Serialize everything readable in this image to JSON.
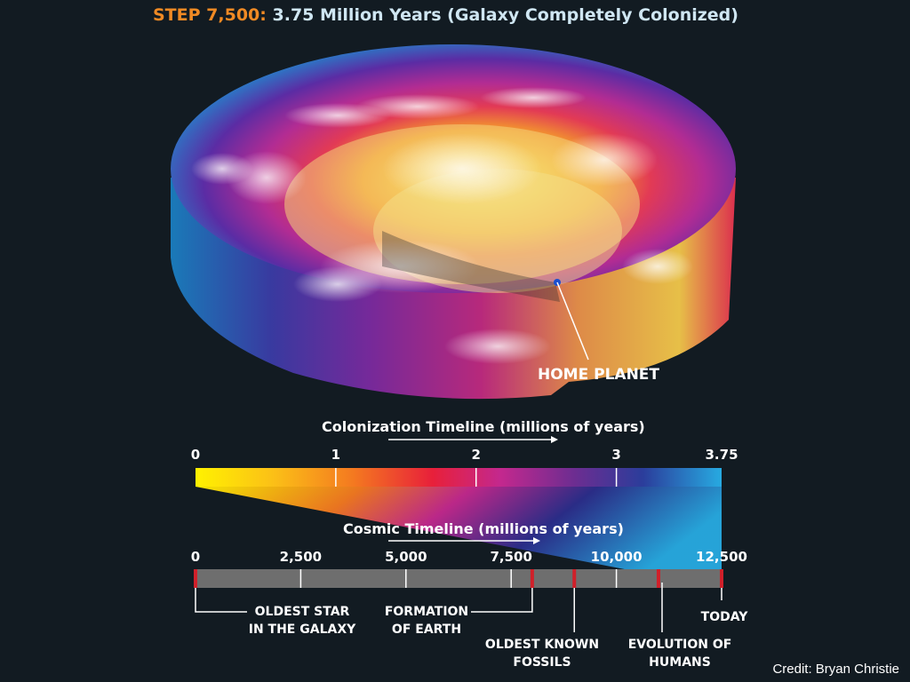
{
  "title": {
    "step": "STEP 7,500:",
    "rest": "3.75 Million Years (Galaxy Completely Colonized)"
  },
  "galaxy": {
    "home_label": "HOME PLANET"
  },
  "colonization_timeline": {
    "title": "Colonization Timeline (millions of years)",
    "ticks": [
      "0",
      "1",
      "2",
      "3",
      "3.75"
    ],
    "tick_values": [
      0,
      1,
      2,
      3,
      3.75
    ],
    "max": 3.75
  },
  "cosmic_timeline": {
    "title": "Cosmic Timeline (millions of years)",
    "ticks": [
      "0",
      "2,500",
      "5,000",
      "7,500",
      "10,000",
      "12,500"
    ],
    "tick_values": [
      0,
      2500,
      5000,
      7500,
      10000,
      12500
    ],
    "max": 12500,
    "events": [
      {
        "label_line1": "OLDEST STAR",
        "label_line2": "IN THE GALAXY",
        "value": 0
      },
      {
        "label_line1": "FORMATION",
        "label_line2": "OF EARTH",
        "value": 8000
      },
      {
        "label_line1": "OLDEST KNOWN",
        "label_line2": "FOSSILS",
        "value": 9000
      },
      {
        "label_line1": "EVOLUTION OF",
        "label_line2": "HUMANS",
        "value": 11000
      },
      {
        "label_line1": "TODAY",
        "label_line2": "",
        "value": 12500
      }
    ]
  },
  "credit": "Credit: Bryan Christie",
  "colors": {
    "background": "#121b22",
    "step_orange": "#f08a24",
    "title_light_blue": "#cfe6f2",
    "marker_red": "#d0202a",
    "bar_gray": "#6e6e6e"
  }
}
